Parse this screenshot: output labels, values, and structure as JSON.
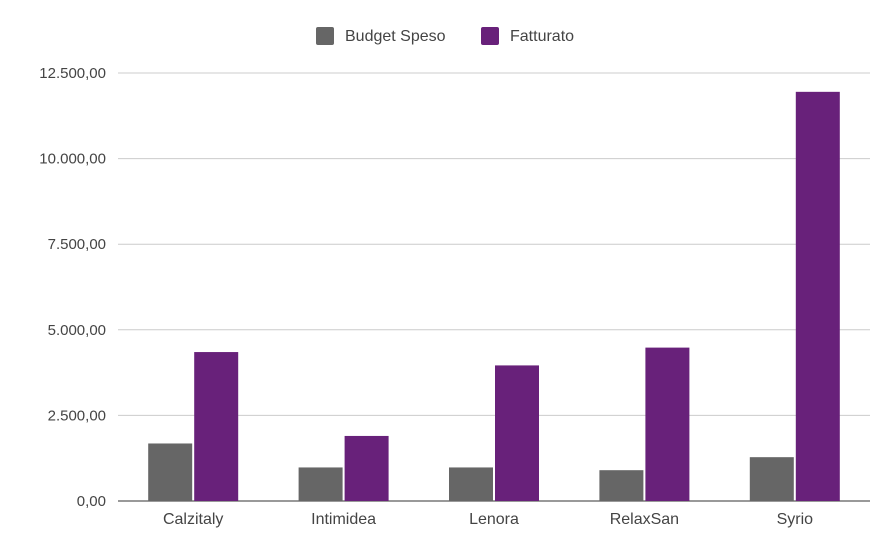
{
  "chart_data": {
    "type": "bar",
    "categories": [
      "Calzitaly",
      "Intimidea",
      "Lenora",
      "RelaxSan",
      "Syrio"
    ],
    "series": [
      {
        "name": "Budget Speso",
        "color": "#666666",
        "values": [
          1680,
          980,
          980,
          900,
          1280
        ]
      },
      {
        "name": "Fatturato",
        "color": "#68217a",
        "values": [
          4350,
          1900,
          3960,
          4480,
          11950
        ]
      }
    ],
    "y_ticks": [
      "0,00",
      "2.500,00",
      "5.000,00",
      "7.500,00",
      "10.000,00",
      "12.500,00"
    ],
    "ylim": [
      0,
      12500
    ],
    "grid": true,
    "legend_position": "top-center"
  }
}
